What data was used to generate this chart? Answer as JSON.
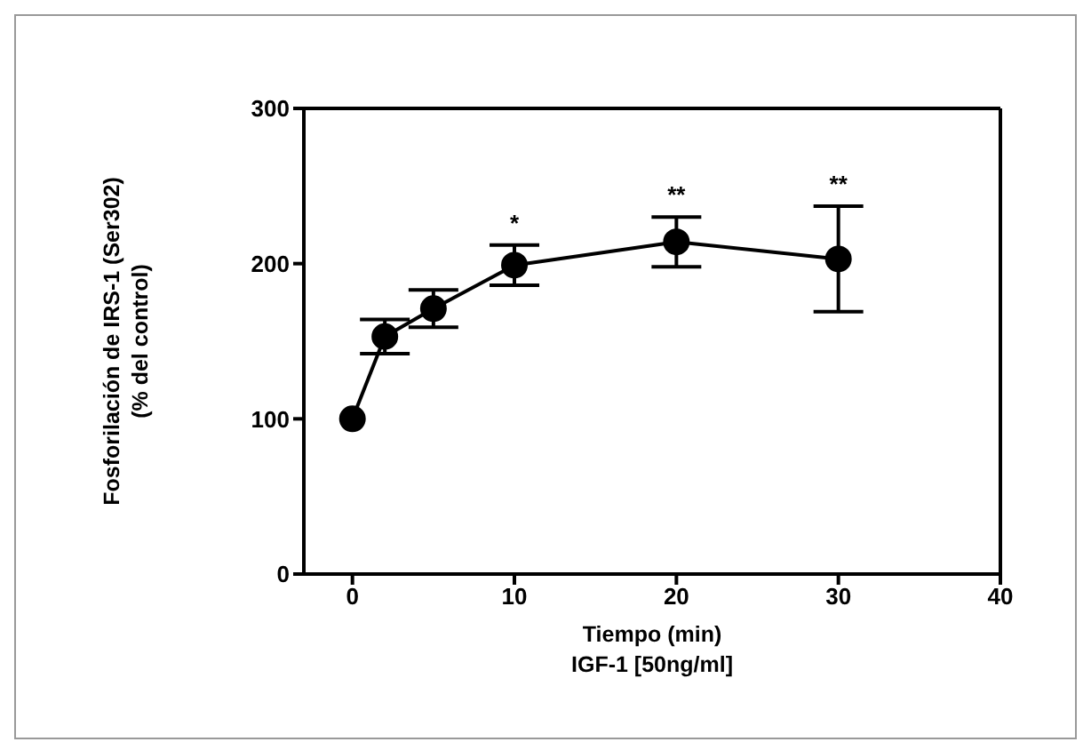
{
  "chart_data": {
    "type": "line",
    "xlabel": "Tiempo (min)\nIGF-1 [50ng/ml]",
    "ylabel": "Fosforilación de IRS-1 (Ser302)\n(% del control)",
    "x": [
      0,
      2,
      5,
      10,
      20,
      30
    ],
    "series": [
      {
        "color": "#000000",
        "values": [
          100,
          153,
          171,
          199,
          214,
          203
        ],
        "errors": [
          null,
          11,
          12,
          13,
          16,
          34
        ]
      }
    ],
    "xlim": [
      -3,
      40
    ],
    "xticks": [
      0,
      10,
      20,
      30,
      40
    ],
    "ylim": [
      0,
      300
    ],
    "yticks": [
      0,
      100,
      200,
      300
    ],
    "marker": "circle",
    "line_style": "solid",
    "grid": false,
    "legend": false,
    "annotations": [
      {
        "text": "*",
        "x": 10,
        "y": 199
      },
      {
        "text": "**",
        "x": 20,
        "y": 214
      },
      {
        "text": "**",
        "x": 30,
        "y": 203
      }
    ]
  }
}
